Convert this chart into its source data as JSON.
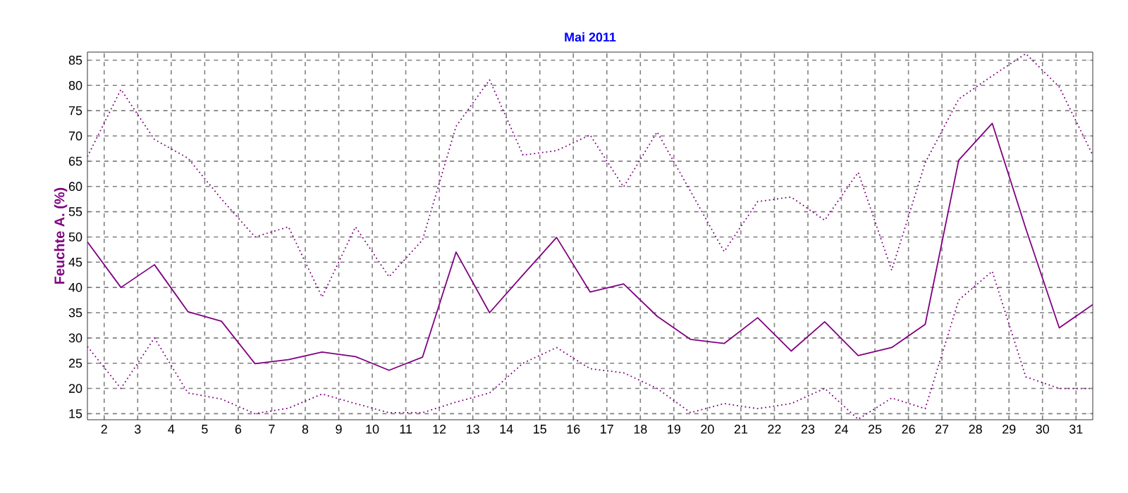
{
  "chart_data": {
    "type": "line",
    "title": "Mai 2011",
    "ylabel": "Feuchte A. (%)",
    "x": [
      1,
      2,
      3,
      4,
      5,
      6,
      7,
      8,
      9,
      10,
      11,
      12,
      13,
      14,
      15,
      16,
      17,
      18,
      19,
      20,
      21,
      22,
      23,
      24,
      25,
      26,
      27,
      28,
      29,
      30,
      31
    ],
    "series": [
      {
        "color": "#800080",
        "line_style": "solid",
        "values": [
          49,
          40,
          44.5,
          35.2,
          33.3,
          24.9,
          25.7,
          27.2,
          26.3,
          23.6,
          26.2,
          47,
          35,
          42.5,
          49.9,
          39.1,
          40.7,
          34.3,
          29.7,
          28.9,
          34,
          27.4,
          33.2,
          26.5,
          28.1,
          32.7,
          65.2,
          72.5,
          51.7,
          32,
          36.6
        ]
      },
      {
        "color": "#800080",
        "line_style": "dotted",
        "values": [
          65.9,
          79.2,
          69.3,
          65.6,
          57.5,
          50,
          52,
          38.1,
          52,
          42.1,
          49.4,
          71.9,
          81.1,
          66.2,
          67.1,
          70.2,
          59.9,
          70.8,
          59,
          47.1,
          57,
          57.9,
          53.3,
          62.8,
          43.4,
          64.7,
          77.3,
          81.9,
          86.3,
          79.7,
          66.2
        ]
      },
      {
        "color": "#800080",
        "line_style": "dotted",
        "values": [
          28.3,
          20,
          30,
          19.1,
          17.9,
          15,
          16.1,
          18.9,
          17,
          15.2,
          15.2,
          17.3,
          19.1,
          25,
          28.1,
          23.9,
          23.1,
          20,
          15.2,
          17,
          16,
          17,
          20,
          13.9,
          18.1,
          16,
          37.5,
          43.2,
          22.3,
          20,
          20
        ]
      }
    ],
    "xlim": [
      1,
      31
    ],
    "ylim": [
      13.8,
      86.6
    ],
    "xticks": [
      {
        "value": 1.5,
        "label": "2"
      },
      {
        "value": 2.5,
        "label": "3"
      },
      {
        "value": 3.5,
        "label": "4"
      },
      {
        "value": 4.5,
        "label": "5"
      },
      {
        "value": 5.5,
        "label": "6"
      },
      {
        "value": 6.5,
        "label": "7"
      },
      {
        "value": 7.5,
        "label": "8"
      },
      {
        "value": 8.5,
        "label": "9"
      },
      {
        "value": 9.5,
        "label": "10"
      },
      {
        "value": 10.5,
        "label": "11"
      },
      {
        "value": 11.5,
        "label": "12"
      },
      {
        "value": 12.5,
        "label": "13"
      },
      {
        "value": 13.5,
        "label": "14"
      },
      {
        "value": 14.5,
        "label": "15"
      },
      {
        "value": 15.5,
        "label": "16"
      },
      {
        "value": 16.5,
        "label": "17"
      },
      {
        "value": 17.5,
        "label": "18"
      },
      {
        "value": 18.5,
        "label": "19"
      },
      {
        "value": 19.5,
        "label": "20"
      },
      {
        "value": 20.5,
        "label": "21"
      },
      {
        "value": 21.5,
        "label": "22"
      },
      {
        "value": 22.5,
        "label": "23"
      },
      {
        "value": 23.5,
        "label": "24"
      },
      {
        "value": 24.5,
        "label": "25"
      },
      {
        "value": 25.5,
        "label": "26"
      },
      {
        "value": 26.5,
        "label": "27"
      },
      {
        "value": 27.5,
        "label": "28"
      },
      {
        "value": 28.5,
        "label": "29"
      },
      {
        "value": 29.5,
        "label": "30"
      },
      {
        "value": 30.5,
        "label": "31"
      }
    ],
    "yticks": [
      15,
      20,
      25,
      30,
      35,
      40,
      45,
      50,
      55,
      60,
      65,
      70,
      75,
      80,
      85
    ],
    "grid": true,
    "marker": "none"
  }
}
